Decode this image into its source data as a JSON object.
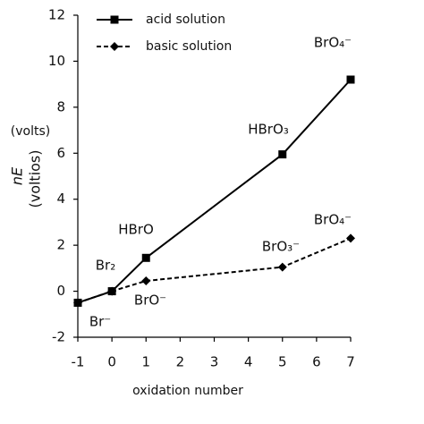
{
  "chart_data": {
    "type": "line",
    "y_label_parts": [
      "nE",
      "(voltios)",
      "(volts)"
    ],
    "x_label": "oxidation number",
    "x": [
      -1,
      0,
      1,
      5,
      7
    ],
    "series": [
      {
        "name": "acid solution",
        "color": "#000000",
        "dashed": false,
        "marker": "square",
        "values": [
          -0.5,
          0,
          1.45,
          5.95,
          9.2
        ],
        "labels": [
          "Br⁻",
          "Br₂",
          "HBrO",
          "HBrO₃",
          "BrO₄⁻"
        ]
      },
      {
        "name": "basic solution",
        "color": "#000000",
        "dashed": true,
        "marker": "diamond",
        "values": [
          -0.5,
          0,
          0.45,
          1.05,
          2.3
        ],
        "labels": [
          null,
          null,
          "BrO⁻",
          "BrO₃⁻",
          "BrO₄⁻"
        ]
      }
    ],
    "xlim": [
      -1,
      7
    ],
    "xticks": [
      -1,
      0,
      1,
      2,
      3,
      4,
      5,
      6,
      7
    ],
    "ylim": [
      -2,
      12
    ],
    "yticks": [
      -2,
      0,
      2,
      4,
      6,
      8,
      10,
      12
    ],
    "legend": "top-left"
  }
}
